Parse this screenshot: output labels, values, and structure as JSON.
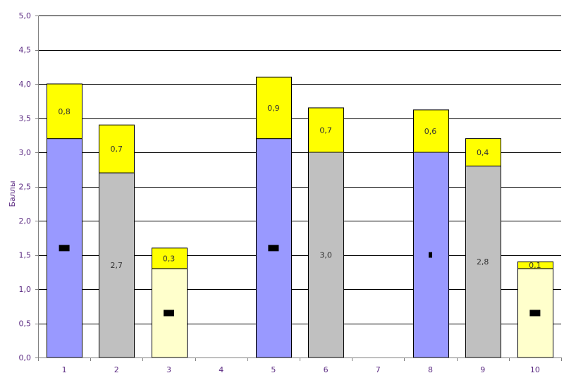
{
  "chart_data": {
    "type": "bar",
    "stacked": true,
    "ylabel": "Баллы",
    "ylim": [
      0,
      5
    ],
    "y_ticks": [
      "0,0",
      "0,5",
      "1,0",
      "1,5",
      "2,0",
      "2,5",
      "3,0",
      "3,5",
      "4,0",
      "4,5",
      "5,0"
    ],
    "categories": [
      "1",
      "2",
      "3",
      "4",
      "5",
      "6",
      "7",
      "8",
      "9",
      "10"
    ],
    "grid": true,
    "bars": [
      {
        "category": "1",
        "base": 3.2,
        "base_color": "#9999ff",
        "base_label": "",
        "top": 0.8,
        "top_label": "0,8",
        "marker": "block"
      },
      {
        "category": "2",
        "base": 2.7,
        "base_color": "#c0c0c0",
        "base_label": "2,7",
        "top": 0.7,
        "top_label": "0,7",
        "marker": ""
      },
      {
        "category": "3",
        "base": 1.3,
        "base_color": "#ffffcc",
        "base_label": "",
        "top": 0.3,
        "top_label": "0,3",
        "marker": "block"
      },
      {
        "category": "4",
        "base": 0,
        "base_color": "",
        "base_label": "",
        "top": 0,
        "top_label": "",
        "marker": ""
      },
      {
        "category": "5",
        "base": 3.2,
        "base_color": "#9999ff",
        "base_label": "",
        "top": 0.9,
        "top_label": "0,9",
        "marker": "block"
      },
      {
        "category": "6",
        "base": 3.0,
        "base_color": "#c0c0c0",
        "base_label": "3,0",
        "top": 0.65,
        "top_label": "0,7",
        "marker": ""
      },
      {
        "category": "7",
        "base": 0,
        "base_color": "",
        "base_label": "",
        "top": 0,
        "top_label": "",
        "marker": ""
      },
      {
        "category": "8",
        "base": 3.0,
        "base_color": "#9999ff",
        "base_label": "",
        "top": 0.62,
        "top_label": "0,6",
        "marker": "small"
      },
      {
        "category": "9",
        "base": 2.8,
        "base_color": "#c0c0c0",
        "base_label": "2,8",
        "top": 0.4,
        "top_label": "0,4",
        "marker": ""
      },
      {
        "category": "10",
        "base": 1.3,
        "base_color": "#ffffcc",
        "base_label": "",
        "top": 0.1,
        "top_label": "0,1",
        "marker": "block"
      }
    ],
    "top_color": "#ffff00"
  }
}
